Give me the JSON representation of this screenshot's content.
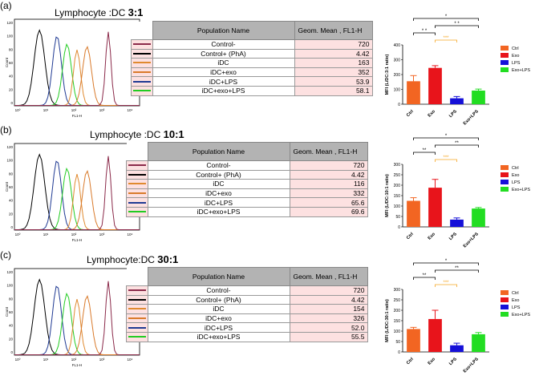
{
  "panels": [
    {
      "label": "(a)",
      "title_prefix": "Lymphocyte :DC",
      "ratio": "3:1",
      "hist": {
        "y_ticks": [
          "120",
          "100",
          "80",
          "60",
          "40",
          "20",
          "0"
        ],
        "y_label": "Count",
        "x_label": "FL1-H",
        "x_ticks": [
          "10⁰",
          "10¹",
          "10²",
          "10³",
          "10⁴"
        ]
      },
      "table": {
        "headers": [
          "Population Name",
          "Geom. Mean , FL1-H"
        ],
        "rows": [
          {
            "name": "Control-",
            "value": "720",
            "color": "#8b2a4a"
          },
          {
            "name": "Control+ (PhA)",
            "value": "4.42",
            "color": "#000000"
          },
          {
            "name": "iDC",
            "value": "163",
            "color": "#e08a30"
          },
          {
            "name": "iDC+exo",
            "value": "352",
            "color": "#d97a2b"
          },
          {
            "name": "iDC+LPS",
            "value": "53.9",
            "color": "#1f3a93"
          },
          {
            "name": "iDC+exo+LPS",
            "value": "58.1",
            "color": "#22cc22"
          }
        ]
      },
      "chart_data": {
        "type": "bar",
        "categories": [
          "Ctrl",
          "Exo",
          "LPS",
          "Exo+LPS"
        ],
        "values": [
          155,
          245,
          40,
          92
        ],
        "errors": [
          38,
          15,
          12,
          10
        ],
        "colors": [
          "#f26522",
          "#e8141b",
          "#1510d8",
          "#22dd22"
        ],
        "ylabel": "MFI (L/DC:3:1 ratio)",
        "ylim": [
          0,
          400
        ],
        "yticks": [
          "0",
          "100",
          "200",
          "300",
          "400"
        ],
        "legend": [
          "Ctrl",
          "Exo",
          "LPS",
          "Exo+LPS"
        ],
        "significance": [
          {
            "from": 0,
            "to": 3,
            "label": "*",
            "color": "#000000",
            "level": 3
          },
          {
            "from": 1,
            "to": 3,
            "label": "* *",
            "color": "#000000",
            "level": 2
          },
          {
            "from": 0,
            "to": 1,
            "label": "* *",
            "color": "#000000",
            "level": 1
          },
          {
            "from": 1,
            "to": 2,
            "label": "***",
            "color": "#f5a623",
            "level": 0
          }
        ]
      }
    },
    {
      "label": "(b)",
      "title_prefix": "Lymphocyte :DC",
      "ratio": "10:1",
      "hist": {
        "y_ticks": [
          "120",
          "100",
          "80",
          "60",
          "40",
          "20",
          "0"
        ],
        "y_label": "Count",
        "x_label": "FL1-H",
        "x_ticks": [
          "10⁰",
          "10¹",
          "10²",
          "10³",
          "10⁴"
        ]
      },
      "table": {
        "headers": [
          "Population Name",
          "Geom. Mean , FL1-H"
        ],
        "rows": [
          {
            "name": "Control-",
            "value": "720",
            "color": "#8b2a4a"
          },
          {
            "name": "Control+ (PhA)",
            "value": "4.42",
            "color": "#000000"
          },
          {
            "name": "iDC",
            "value": "116",
            "color": "#e08a30"
          },
          {
            "name": "iDC+exo",
            "value": "332",
            "color": "#d97a2b"
          },
          {
            "name": "iDC+LPS",
            "value": "65.6",
            "color": "#1f3a93"
          },
          {
            "name": "iDC+exo+LPS",
            "value": "69.6",
            "color": "#22cc22"
          }
        ]
      },
      "chart_data": {
        "type": "bar",
        "categories": [
          "Ctrl",
          "Exo",
          "LPS",
          "Exo+LPS"
        ],
        "values": [
          125,
          188,
          35,
          88
        ],
        "errors": [
          15,
          40,
          8,
          5
        ],
        "colors": [
          "#f26522",
          "#e8141b",
          "#1510d8",
          "#22dd22"
        ],
        "ylabel": "MFI (L/DC:10:1 ratio)",
        "ylim": [
          0,
          300
        ],
        "yticks": [
          "0",
          "50",
          "100",
          "150",
          "200",
          "250",
          "300"
        ],
        "legend": [
          "Ctrl",
          "Exo",
          "LPS",
          "Exo+LPS"
        ],
        "significance": [
          {
            "from": 0,
            "to": 3,
            "label": "*",
            "color": "#000000",
            "level": 3
          },
          {
            "from": 1,
            "to": 3,
            "label": "**",
            "color": "#000000",
            "level": 2
          },
          {
            "from": 0,
            "to": 1,
            "label": "**",
            "color": "#000000",
            "level": 1
          },
          {
            "from": 1,
            "to": 2,
            "label": "***",
            "color": "#f5a623",
            "level": 0
          }
        ]
      }
    },
    {
      "label": "(c)",
      "title_prefix": "Lymphocyte:DC",
      "ratio": "30:1",
      "hist": {
        "y_ticks": [
          "120",
          "100",
          "80",
          "60",
          "40",
          "20",
          "0"
        ],
        "y_label": "Count",
        "x_label": "FL1-H",
        "x_ticks": [
          "10⁰",
          "10¹",
          "10²",
          "10³",
          "10⁴"
        ]
      },
      "table": {
        "headers": [
          "Population Name",
          "Geom. Mean , FL1-H"
        ],
        "rows": [
          {
            "name": "Control-",
            "value": "720",
            "color": "#8b2a4a"
          },
          {
            "name": "Control+ (PhA)",
            "value": "4.42",
            "color": "#000000"
          },
          {
            "name": "iDC",
            "value": "154",
            "color": "#e08a30"
          },
          {
            "name": "iDC+exo",
            "value": "326",
            "color": "#d97a2b"
          },
          {
            "name": "iDC+LPS",
            "value": "52.0",
            "color": "#1f3a93"
          },
          {
            "name": "iDC+exo+LPS",
            "value": "55.5",
            "color": "#22cc22"
          }
        ]
      },
      "chart_data": {
        "type": "bar",
        "categories": [
          "Ctrl",
          "Exo",
          "LPS",
          "Exo+LPS"
        ],
        "values": [
          110,
          158,
          32,
          85
        ],
        "errors": [
          8,
          42,
          10,
          8
        ],
        "colors": [
          "#f26522",
          "#e8141b",
          "#1510d8",
          "#22dd22"
        ],
        "ylabel": "MFI (L/DC:30:1 ratio)",
        "ylim": [
          0,
          300
        ],
        "yticks": [
          "0",
          "50",
          "100",
          "150",
          "200",
          "250",
          "300"
        ],
        "legend": [
          "Ctrl",
          "Exo",
          "LPS",
          "Exo+LPS"
        ],
        "significance": [
          {
            "from": 0,
            "to": 3,
            "label": "*",
            "color": "#000000",
            "level": 3
          },
          {
            "from": 1,
            "to": 3,
            "label": "**",
            "color": "#000000",
            "level": 2
          },
          {
            "from": 0,
            "to": 1,
            "label": "**",
            "color": "#000000",
            "level": 1
          },
          {
            "from": 1,
            "to": 2,
            "label": "***",
            "color": "#f5a623",
            "level": 0
          }
        ]
      }
    }
  ]
}
